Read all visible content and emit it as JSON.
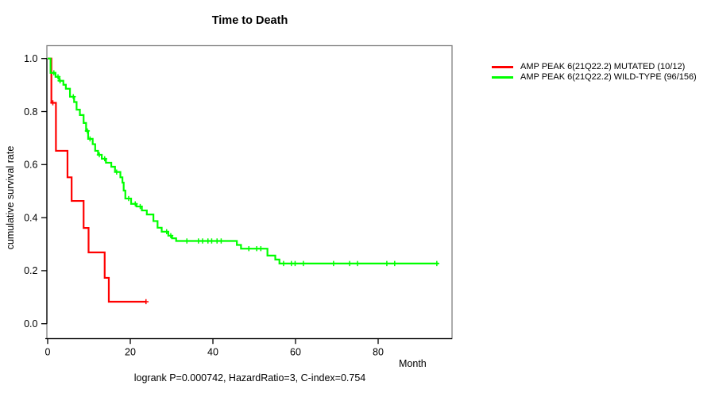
{
  "figure": {
    "title": "Time to Death",
    "x_axis_title": "Month",
    "y_axis_title": "cumulative survival rate",
    "annotation": "logrank P=0.000742, HazardRatio=3, C-index=0.754"
  },
  "chart_data": {
    "type": "line",
    "subtype": "kaplan-meier-step",
    "title": "Time to Death",
    "xlabel": "Month",
    "ylabel": "cumulative survival rate",
    "xlim": [
      0,
      105
    ],
    "ylim": [
      0,
      1.0
    ],
    "x_ticks": [
      0,
      20,
      40,
      60,
      80
    ],
    "y_ticks": [
      0.0,
      0.2,
      0.4,
      0.6,
      0.8,
      1.0
    ],
    "grid": false,
    "legend_position": "right-outside",
    "annotation": "logrank P=0.000742, HazardRatio=3, C-index=0.754",
    "frame_color": "#808080",
    "axis_color": "#000000",
    "series": [
      {
        "name": "AMP PEAK 6(21Q22.2) MUTATED (10/12)",
        "color": "#ff0000",
        "start": [
          0,
          1.0
        ],
        "steps": [
          [
            0.9,
            0.833
          ],
          [
            2.0,
            0.652
          ],
          [
            4.8,
            0.552
          ],
          [
            5.8,
            0.463
          ],
          [
            8.7,
            0.361
          ],
          [
            9.9,
            0.269
          ],
          [
            13.8,
            0.173
          ],
          [
            14.8,
            0.083
          ]
        ],
        "end_month": 23.8,
        "censors": [
          [
            1.25,
            0.833
          ],
          [
            23.8,
            0.083
          ]
        ]
      },
      {
        "name": "AMP PEAK 6(21Q22.2) WILD-TYPE (96/156)",
        "color": "#00ff00",
        "start": [
          0,
          1.0
        ],
        "steps": [
          [
            0.7,
            0.946
          ],
          [
            1.9,
            0.931
          ],
          [
            2.8,
            0.916
          ],
          [
            3.8,
            0.901
          ],
          [
            4.4,
            0.886
          ],
          [
            5.4,
            0.856
          ],
          [
            6.4,
            0.836
          ],
          [
            7.0,
            0.807
          ],
          [
            7.8,
            0.787
          ],
          [
            8.7,
            0.757
          ],
          [
            9.3,
            0.727
          ],
          [
            9.8,
            0.697
          ],
          [
            10.9,
            0.677
          ],
          [
            11.5,
            0.652
          ],
          [
            12.2,
            0.637
          ],
          [
            13.1,
            0.622
          ],
          [
            14.1,
            0.607
          ],
          [
            15.4,
            0.592
          ],
          [
            16.3,
            0.572
          ],
          [
            17.6,
            0.552
          ],
          [
            18.1,
            0.532
          ],
          [
            18.4,
            0.502
          ],
          [
            18.8,
            0.472
          ],
          [
            20.2,
            0.452
          ],
          [
            21.5,
            0.442
          ],
          [
            22.8,
            0.427
          ],
          [
            24.0,
            0.412
          ],
          [
            25.6,
            0.387
          ],
          [
            26.6,
            0.362
          ],
          [
            27.6,
            0.347
          ],
          [
            29.2,
            0.332
          ],
          [
            30.1,
            0.322
          ],
          [
            31.1,
            0.312
          ],
          [
            45.8,
            0.297
          ],
          [
            46.8,
            0.283
          ],
          [
            53.2,
            0.257
          ],
          [
            55.1,
            0.242
          ],
          [
            56.1,
            0.227
          ]
        ],
        "end_month": 94.6,
        "censors": [
          [
            1.5,
            0.946
          ],
          [
            2.5,
            0.931
          ],
          [
            3.0,
            0.916
          ],
          [
            6.2,
            0.856
          ],
          [
            9.6,
            0.727
          ],
          [
            10.25,
            0.697
          ],
          [
            12.5,
            0.637
          ],
          [
            13.8,
            0.622
          ],
          [
            16.7,
            0.572
          ],
          [
            19.6,
            0.472
          ],
          [
            21.2,
            0.452
          ],
          [
            22.4,
            0.442
          ],
          [
            28.8,
            0.347
          ],
          [
            29.8,
            0.332
          ],
          [
            33.7,
            0.312
          ],
          [
            36.5,
            0.312
          ],
          [
            37.5,
            0.312
          ],
          [
            38.8,
            0.312
          ],
          [
            39.7,
            0.312
          ],
          [
            41.0,
            0.312
          ],
          [
            42.0,
            0.312
          ],
          [
            48.7,
            0.283
          ],
          [
            50.6,
            0.283
          ],
          [
            51.6,
            0.283
          ],
          [
            57.1,
            0.227
          ],
          [
            59.0,
            0.227
          ],
          [
            59.9,
            0.227
          ],
          [
            61.9,
            0.227
          ],
          [
            69.2,
            0.227
          ],
          [
            73.1,
            0.227
          ],
          [
            75.0,
            0.227
          ],
          [
            82.1,
            0.227
          ],
          [
            84.0,
            0.227
          ],
          [
            94.2,
            0.227
          ]
        ]
      }
    ]
  },
  "legend": {
    "items": [
      {
        "label": "AMP PEAK 6(21Q22.2) MUTATED (10/12)",
        "color": "#ff0000"
      },
      {
        "label": "AMP PEAK 6(21Q22.2) WILD-TYPE (96/156)",
        "color": "#00ff00"
      }
    ]
  }
}
